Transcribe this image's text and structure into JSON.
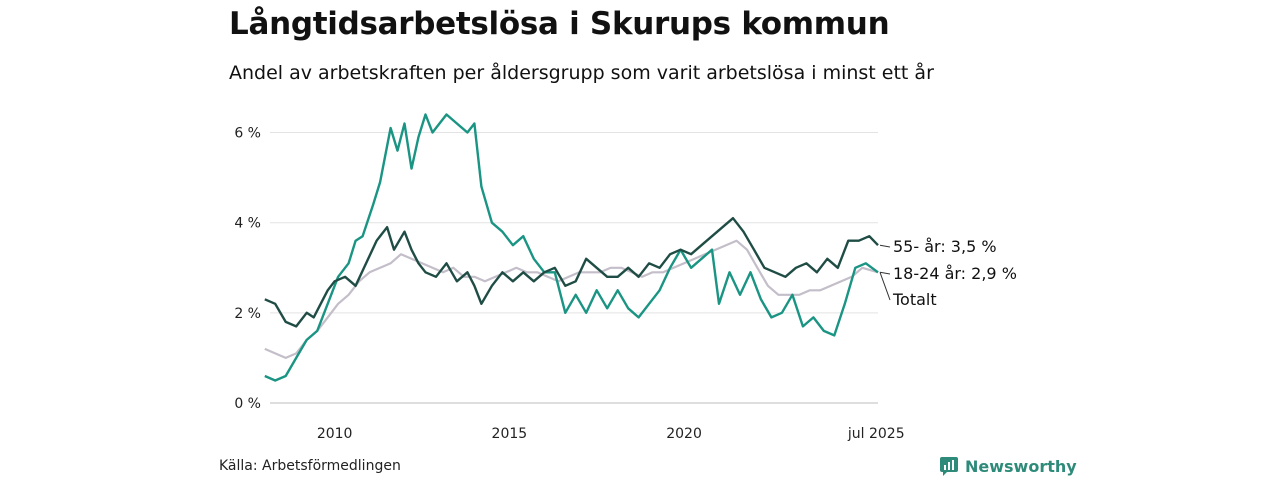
{
  "title": "Långtidsarbetslösa i Skurups kommun",
  "subtitle": "Andel av arbetskraften per åldersgrupp som varit arbetslösa i minst ett år",
  "source": "Källa: Arbetsförmedlingen",
  "brand": "Newsworthy",
  "chart_data": {
    "type": "line",
    "title": "Långtidsarbetslösa i Skurups kommun",
    "xlabel": "",
    "ylabel": "",
    "ylim": [
      0,
      6.5
    ],
    "xlim": [
      2008.0,
      2025.55
    ],
    "y_ticks": [
      0,
      2,
      4,
      6
    ],
    "y_tick_labels": [
      "0 %",
      "2 %",
      "4 %",
      "6 %"
    ],
    "x_ticks": [
      2010,
      2015,
      2020,
      2025.5
    ],
    "x_tick_labels": [
      "2010",
      "2015",
      "2020",
      "jul 2025"
    ],
    "grid": "horizontal",
    "end_labels": [
      "55- år: 3,5 %",
      "18-24 år: 2,9 %",
      "Totalt"
    ],
    "series": [
      {
        "name": "55- år",
        "color": "#1f4d45",
        "x": [
          2008.0,
          2008.3,
          2008.6,
          2008.9,
          2009.2,
          2009.4,
          2009.6,
          2009.8,
          2010.0,
          2010.3,
          2010.6,
          2010.9,
          2011.2,
          2011.5,
          2011.7,
          2012.0,
          2012.2,
          2012.4,
          2012.6,
          2012.9,
          2013.2,
          2013.5,
          2013.8,
          2014.0,
          2014.2,
          2014.5,
          2014.8,
          2015.1,
          2015.4,
          2015.7,
          2016.0,
          2016.3,
          2016.6,
          2016.9,
          2017.2,
          2017.5,
          2017.8,
          2018.1,
          2018.4,
          2018.7,
          2019.0,
          2019.3,
          2019.6,
          2019.9,
          2020.2,
          2020.5,
          2020.8,
          2021.1,
          2021.4,
          2021.7,
          2022.0,
          2022.3,
          2022.6,
          2022.9,
          2023.2,
          2023.5,
          2023.8,
          2024.1,
          2024.4,
          2024.7,
          2025.0,
          2025.3,
          2025.55
        ],
        "values": [
          2.3,
          2.2,
          1.8,
          1.7,
          2.0,
          1.9,
          2.2,
          2.5,
          2.7,
          2.8,
          2.6,
          3.1,
          3.6,
          3.9,
          3.4,
          3.8,
          3.4,
          3.1,
          2.9,
          2.8,
          3.1,
          2.7,
          2.9,
          2.6,
          2.2,
          2.6,
          2.9,
          2.7,
          2.9,
          2.7,
          2.9,
          3.0,
          2.6,
          2.7,
          3.2,
          3.0,
          2.8,
          2.8,
          3.0,
          2.8,
          3.1,
          3.0,
          3.3,
          3.4,
          3.3,
          3.5,
          3.7,
          3.9,
          4.1,
          3.8,
          3.4,
          3.0,
          2.9,
          2.8,
          3.0,
          3.1,
          2.9,
          3.2,
          3.0,
          3.6,
          3.6,
          3.7,
          3.5
        ]
      },
      {
        "name": "18-24 år",
        "color": "#1a9483",
        "x": [
          2008.0,
          2008.3,
          2008.6,
          2008.9,
          2009.2,
          2009.5,
          2009.8,
          2010.1,
          2010.4,
          2010.6,
          2010.8,
          2011.1,
          2011.3,
          2011.6,
          2011.8,
          2012.0,
          2012.2,
          2012.4,
          2012.6,
          2012.8,
          2013.0,
          2013.2,
          2013.5,
          2013.8,
          2014.0,
          2014.2,
          2014.5,
          2014.8,
          2015.1,
          2015.4,
          2015.7,
          2016.0,
          2016.3,
          2016.6,
          2016.9,
          2017.2,
          2017.5,
          2017.8,
          2018.1,
          2018.4,
          2018.7,
          2019.0,
          2019.3,
          2019.6,
          2019.9,
          2020.2,
          2020.5,
          2020.8,
          2021.0,
          2021.3,
          2021.6,
          2021.9,
          2022.2,
          2022.5,
          2022.8,
          2023.1,
          2023.4,
          2023.7,
          2024.0,
          2024.3,
          2024.6,
          2024.9,
          2025.2,
          2025.55
        ],
        "values": [
          0.6,
          0.5,
          0.6,
          1.0,
          1.4,
          1.6,
          2.2,
          2.8,
          3.1,
          3.6,
          3.7,
          4.4,
          4.9,
          6.1,
          5.6,
          6.2,
          5.2,
          5.9,
          6.4,
          6.0,
          6.2,
          6.4,
          6.2,
          6.0,
          6.2,
          4.8,
          4.0,
          3.8,
          3.5,
          3.7,
          3.2,
          2.9,
          2.9,
          2.0,
          2.4,
          2.0,
          2.5,
          2.1,
          2.5,
          2.1,
          1.9,
          2.2,
          2.5,
          3.0,
          3.4,
          3.0,
          3.2,
          3.4,
          2.2,
          2.9,
          2.4,
          2.9,
          2.3,
          1.9,
          2.0,
          2.4,
          1.7,
          1.9,
          1.6,
          1.5,
          2.2,
          3.0,
          3.1,
          2.9
        ]
      },
      {
        "name": "Totalt",
        "color": "#c3bec9",
        "x": [
          2008.0,
          2008.3,
          2008.6,
          2008.9,
          2009.2,
          2009.5,
          2009.8,
          2010.1,
          2010.4,
          2010.7,
          2011.0,
          2011.3,
          2011.6,
          2011.9,
          2012.2,
          2012.5,
          2012.8,
          2013.1,
          2013.4,
          2013.7,
          2014.0,
          2014.3,
          2014.6,
          2014.9,
          2015.2,
          2015.5,
          2015.8,
          2016.1,
          2016.4,
          2016.7,
          2017.0,
          2017.3,
          2017.6,
          2017.9,
          2018.2,
          2018.5,
          2018.8,
          2019.1,
          2019.4,
          2019.7,
          2020.0,
          2020.3,
          2020.6,
          2020.9,
          2021.2,
          2021.5,
          2021.8,
          2022.1,
          2022.4,
          2022.7,
          2023.0,
          2023.3,
          2023.6,
          2023.9,
          2024.2,
          2024.5,
          2024.8,
          2025.1,
          2025.55
        ],
        "values": [
          1.2,
          1.1,
          1.0,
          1.1,
          1.4,
          1.6,
          1.9,
          2.2,
          2.4,
          2.7,
          2.9,
          3.0,
          3.1,
          3.3,
          3.2,
          3.1,
          3.0,
          2.9,
          3.0,
          2.8,
          2.8,
          2.7,
          2.8,
          2.9,
          3.0,
          2.9,
          2.9,
          2.8,
          2.7,
          2.8,
          2.9,
          2.9,
          2.9,
          3.0,
          3.0,
          2.9,
          2.8,
          2.9,
          2.9,
          3.0,
          3.1,
          3.2,
          3.3,
          3.4,
          3.5,
          3.6,
          3.4,
          3.0,
          2.6,
          2.4,
          2.4,
          2.4,
          2.5,
          2.5,
          2.6,
          2.7,
          2.8,
          3.0,
          2.9
        ]
      }
    ]
  }
}
